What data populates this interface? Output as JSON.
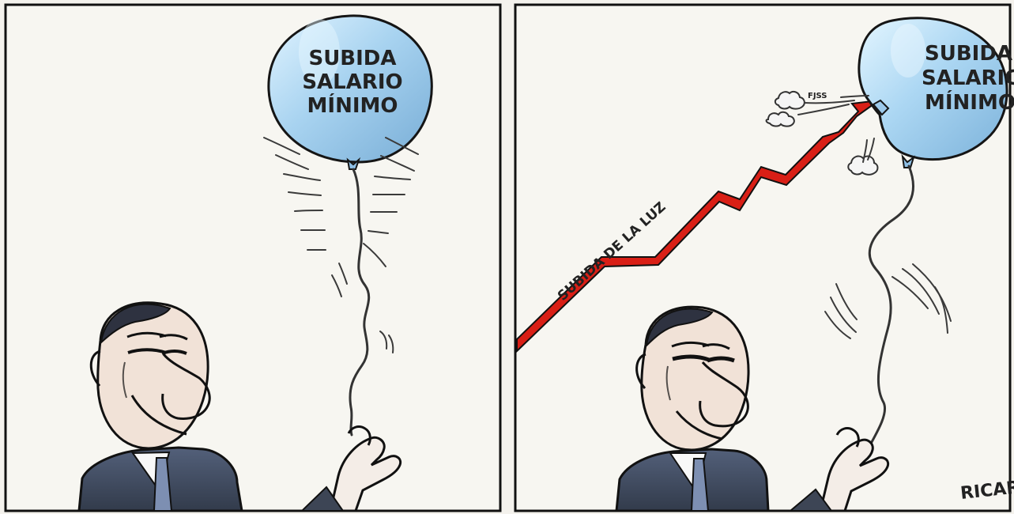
{
  "panels": [
    {
      "balloon_text": [
        "SUBIDA",
        "SALARIO",
        "MÍNIMO"
      ]
    },
    {
      "balloon_text": [
        "SUBIDA",
        "SALARIO",
        "MÍNIMO"
      ],
      "sound_effect": "FJSS",
      "arrow_label": "SUBIDA DE LA LUZ",
      "signature": "RICARDO"
    }
  ],
  "colors": {
    "panel_border": "#111111",
    "background": "#f5f4ef",
    "balloon_fill": "#a8d3f0",
    "balloon_highlight": "#d8eefc",
    "arrow_red": "#d91f16",
    "skin": "#f1e2d7",
    "suit": "#434f63",
    "tie": "#7d8fb2"
  },
  "icons": {
    "balloon": "balloon-icon",
    "arrow": "upward-zigzag-arrow",
    "hand": "hand-icon"
  }
}
